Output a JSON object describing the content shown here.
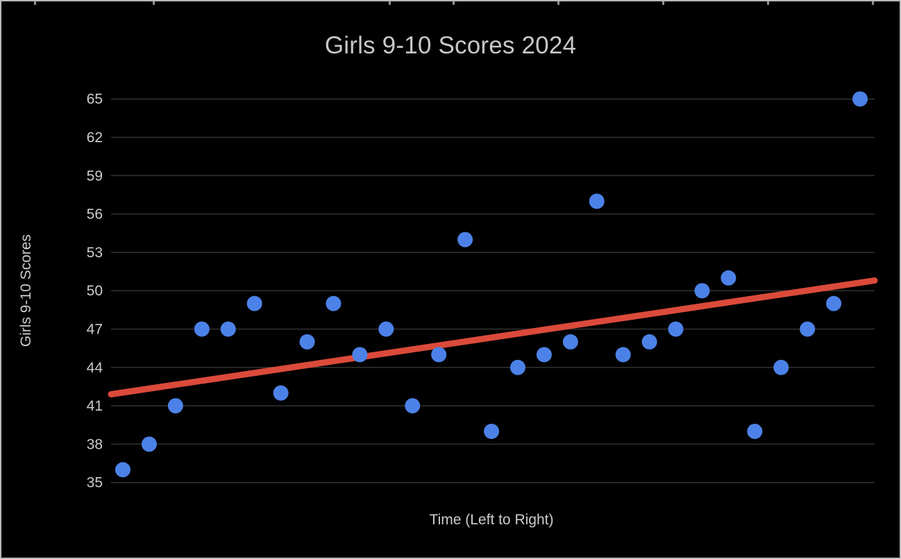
{
  "chart_data": {
    "type": "scatter",
    "title": "Girls 9-10 Scores 2024",
    "xlabel": "Time (Left to Right)",
    "ylabel": "Girls 9-10 Scores",
    "x": [
      1,
      2,
      3,
      4,
      5,
      6,
      7,
      8,
      9,
      10,
      11,
      12,
      13,
      14,
      15,
      16,
      17,
      18,
      19,
      20,
      21,
      22,
      23,
      24,
      25,
      26,
      27,
      28,
      29
    ],
    "values": [
      36,
      38,
      41,
      47,
      47,
      49,
      42,
      46,
      49,
      45,
      47,
      41,
      45,
      54,
      39,
      44,
      45,
      46,
      57,
      45,
      46,
      47,
      50,
      51,
      39,
      44,
      47,
      49,
      65
    ],
    "yticks": [
      35,
      38,
      41,
      44,
      47,
      50,
      53,
      56,
      59,
      62,
      65
    ],
    "ylim": [
      35,
      65
    ],
    "grid": "horizontal-only",
    "legend_position": "none",
    "trendline": {
      "type": "linear",
      "start_value": 41.9,
      "end_value": 50.8
    },
    "colors": {
      "background": "#000000",
      "point": "#4c82e8",
      "trendline": "#db4a3b",
      "gridline": "#323232",
      "text": "#c8c8c8",
      "frame_border": "#b9b9b9"
    }
  }
}
